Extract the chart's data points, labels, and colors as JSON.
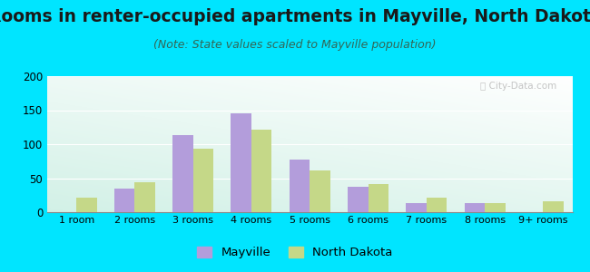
{
  "title": "Rooms in renter-occupied apartments in Mayville, North Dakota",
  "subtitle": "(Note: State values scaled to Mayville population)",
  "categories": [
    "1 room",
    "2 rooms",
    "3 rooms",
    "4 rooms",
    "5 rooms",
    "6 rooms",
    "7 rooms",
    "8 rooms",
    "9+ rooms"
  ],
  "mayville": [
    0,
    35,
    113,
    145,
    77,
    37,
    13,
    14,
    0
  ],
  "north_dakota": [
    22,
    44,
    93,
    122,
    62,
    41,
    22,
    14,
    16
  ],
  "mayville_color": "#b39ddb",
  "nd_color": "#c5d888",
  "background_outer": "#00e5ff",
  "ylim": [
    0,
    200
  ],
  "yticks": [
    0,
    50,
    100,
    150,
    200
  ],
  "bar_width": 0.35,
  "title_fontsize": 13.5,
  "subtitle_fontsize": 9,
  "legend_mayville": "Mayville",
  "legend_nd": "North Dakota"
}
